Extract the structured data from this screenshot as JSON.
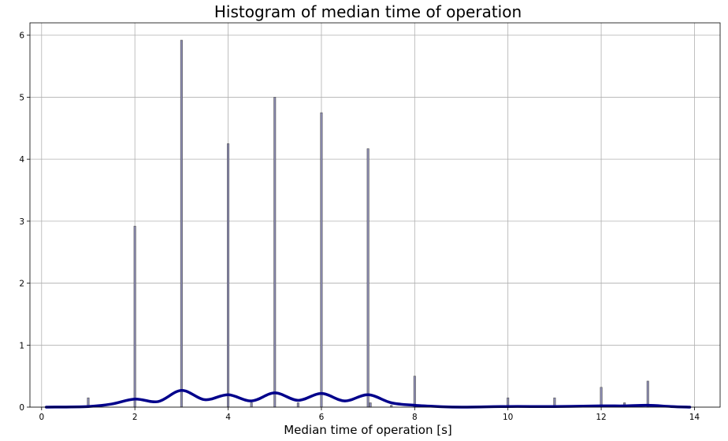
{
  "chart_data": {
    "type": "bar",
    "title": "Histogram of median time of operation",
    "xlabel": "Median time of operation [s]",
    "ylabel": "",
    "xlim": [
      -0.25,
      14.55
    ],
    "ylim": [
      0,
      6.2
    ],
    "xticks": [
      "0",
      "2",
      "4",
      "6",
      "8",
      "10",
      "12",
      "14"
    ],
    "yticks": [
      "0",
      "1",
      "2",
      "3",
      "4",
      "5",
      "6"
    ],
    "grid": true,
    "legend": "none",
    "series": [
      {
        "kind": "histogram",
        "color": "#8c8cb4",
        "edge_color": "#505050",
        "bin_width": 0.04,
        "x": [
          1.0,
          2.0,
          3.0,
          4.0,
          4.5,
          5.0,
          5.5,
          6.0,
          7.0,
          7.05,
          7.5,
          8.0,
          10.0,
          11.0,
          12.0,
          12.5,
          13.0
        ],
        "y": [
          0.15,
          2.92,
          5.92,
          4.25,
          0.07,
          5.0,
          0.07,
          4.75,
          4.17,
          0.07,
          0.03,
          0.5,
          0.15,
          0.15,
          0.32,
          0.07,
          0.42
        ]
      },
      {
        "kind": "kde",
        "color": "#00008b",
        "x": [
          0.1,
          1.0,
          1.5,
          2.0,
          2.5,
          3.0,
          3.5,
          4.0,
          4.5,
          5.0,
          5.5,
          6.0,
          6.5,
          7.0,
          7.5,
          8.0,
          8.5,
          9.0,
          10.0,
          11.0,
          12.0,
          12.5,
          13.0,
          13.5,
          13.9
        ],
        "y": [
          0.0,
          0.01,
          0.05,
          0.13,
          0.09,
          0.27,
          0.12,
          0.2,
          0.1,
          0.23,
          0.11,
          0.22,
          0.1,
          0.2,
          0.07,
          0.03,
          0.01,
          0.0,
          0.01,
          0.01,
          0.02,
          0.02,
          0.03,
          0.01,
          0.0
        ]
      }
    ]
  }
}
